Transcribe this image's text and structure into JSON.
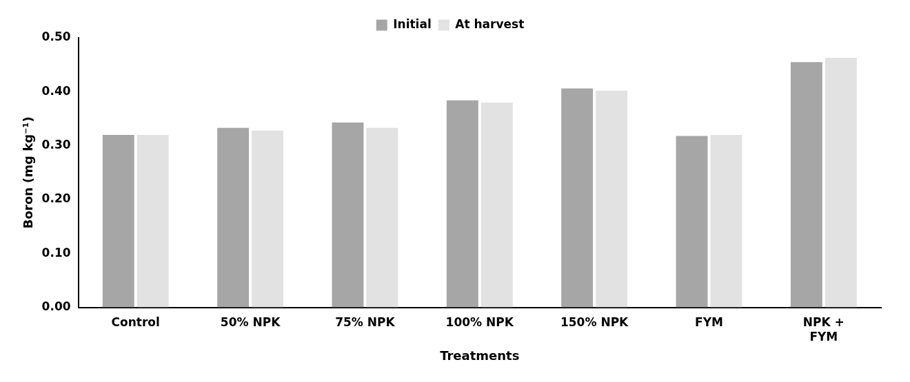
{
  "chart_data": {
    "type": "bar",
    "xlabel": "Treatments",
    "ylabel": "Boron (mg kg⁻¹)",
    "categories": [
      "Control",
      "50% NPK",
      "75% NPK",
      "100% NPK",
      "150% NPK",
      "FYM",
      "NPK + FYM"
    ],
    "series": [
      {
        "name": "Initial",
        "color": "#a6a6a6",
        "values": [
          0.32,
          0.333,
          0.343,
          0.384,
          0.406,
          0.318,
          0.455
        ]
      },
      {
        "name": "At harvest",
        "color": "#e2e2e2",
        "values": [
          0.32,
          0.328,
          0.333,
          0.38,
          0.402,
          0.32,
          0.463
        ]
      }
    ],
    "ylim": [
      0,
      0.5
    ],
    "yticks": [
      {
        "value": 0,
        "label": "0.00"
      },
      {
        "value": 0.1,
        "label": "0.10"
      },
      {
        "value": 0.2,
        "label": "0.20"
      },
      {
        "value": 0.3,
        "label": "0.30"
      },
      {
        "value": 0.4,
        "label": "0.40"
      },
      {
        "value": 0.5,
        "label": "0.50"
      }
    ],
    "grid": false,
    "legend": "top"
  }
}
